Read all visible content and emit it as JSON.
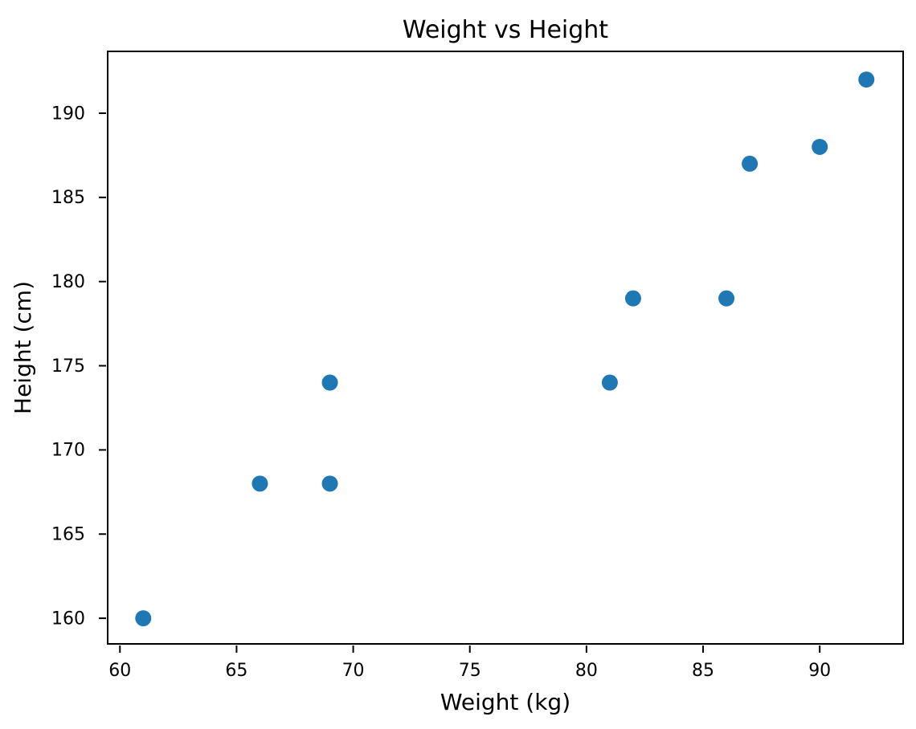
{
  "chart_data": {
    "type": "scatter",
    "title": "Weight vs Height",
    "xlabel": "Weight (kg)",
    "ylabel": "Height (cm)",
    "points": [
      {
        "x": 61,
        "y": 160
      },
      {
        "x": 66,
        "y": 168
      },
      {
        "x": 69,
        "y": 168
      },
      {
        "x": 69,
        "y": 174
      },
      {
        "x": 81,
        "y": 174
      },
      {
        "x": 82,
        "y": 179
      },
      {
        "x": 86,
        "y": 179
      },
      {
        "x": 87,
        "y": 187
      },
      {
        "x": 90,
        "y": 188
      },
      {
        "x": 92,
        "y": 192
      }
    ],
    "xticks": [
      60,
      65,
      70,
      75,
      80,
      85,
      90
    ],
    "yticks": [
      160,
      165,
      170,
      175,
      180,
      185,
      190
    ],
    "xlim": [
      59.44,
      93.61
    ],
    "ylim": [
      158.43,
      193.72
    ],
    "grid": false,
    "legend": null,
    "marker_color": "#1f77b4",
    "marker_radius_px": 10,
    "axis_color": "#000000",
    "background_color": "#ffffff"
  }
}
